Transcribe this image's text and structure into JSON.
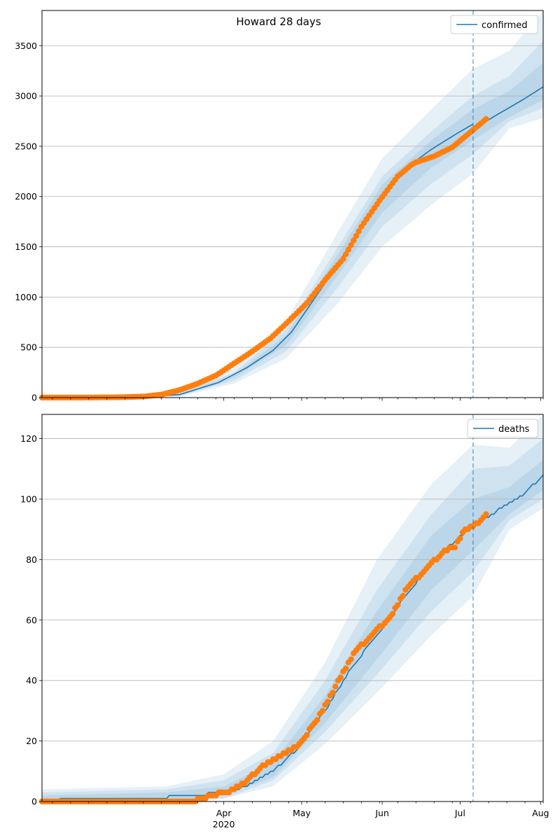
{
  "figure": {
    "title": "Howard 28 days",
    "colors": {
      "model": "#1f77b4",
      "observed": "#ff7f0e",
      "band": "#1f77b4",
      "grid": "#b0b0b0"
    }
  },
  "chart_data": [
    {
      "type": "line",
      "legend": "confirmed",
      "legend_position": "top-right",
      "x_type": "date",
      "xlim": [
        "2020-01-22",
        "2020-08-02"
      ],
      "ylim": [
        0,
        3850
      ],
      "yticks": [
        0,
        500,
        1000,
        1500,
        2000,
        2500,
        3000,
        3500
      ],
      "grid": "horizontal",
      "forecast_start": "2020-07-06",
      "series": [
        {
          "name": "confirmed",
          "role": "model",
          "x": [
            "2020-01-22",
            "2020-03-01",
            "2020-03-15",
            "2020-03-30",
            "2020-04-10",
            "2020-04-20",
            "2020-04-27",
            "2020-05-05",
            "2020-05-15",
            "2020-05-25",
            "2020-06-01",
            "2020-06-10",
            "2020-06-20",
            "2020-06-30",
            "2020-07-06"
          ],
          "y": [
            0,
            5,
            30,
            150,
            300,
            470,
            650,
            950,
            1330,
            1740,
            2010,
            2280,
            2470,
            2630,
            2720
          ]
        },
        {
          "name": "confirmed projection",
          "role": "model",
          "x": [
            "2020-07-06",
            "2020-07-15",
            "2020-07-25",
            "2020-08-02"
          ],
          "y": [
            2670,
            2810,
            2960,
            3090
          ]
        },
        {
          "name": "confirmed observed",
          "role": "observed",
          "x": [
            "2020-01-22",
            "2020-02-05",
            "2020-02-20",
            "2020-03-01",
            "2020-03-08",
            "2020-03-15",
            "2020-03-22",
            "2020-03-29",
            "2020-04-05",
            "2020-04-12",
            "2020-04-19",
            "2020-04-26",
            "2020-05-03",
            "2020-05-10",
            "2020-05-17",
            "2020-05-24",
            "2020-05-31",
            "2020-06-07",
            "2020-06-12",
            "2020-06-14",
            "2020-06-21",
            "2020-06-28",
            "2020-07-05",
            "2020-07-11"
          ],
          "y": [
            0,
            0,
            3,
            10,
            30,
            75,
            140,
            220,
            340,
            460,
            590,
            760,
            940,
            1170,
            1380,
            1700,
            1960,
            2200,
            2310,
            2340,
            2400,
            2490,
            2640,
            2770
          ]
        }
      ],
      "bands": [
        {
          "x": [
            "2020-01-22",
            "2020-03-15",
            "2020-04-05",
            "2020-04-25",
            "2020-05-15",
            "2020-06-01",
            "2020-06-20",
            "2020-07-06",
            "2020-07-20",
            "2020-08-02"
          ],
          "low": [
            0,
            10,
            140,
            390,
            940,
            1500,
            1920,
            2230,
            2680,
            2780
          ],
          "high": [
            0,
            60,
            290,
            760,
            1650,
            2380,
            2870,
            3270,
            3450,
            3850
          ]
        },
        {
          "x": [
            "2020-01-22",
            "2020-03-15",
            "2020-04-05",
            "2020-04-25",
            "2020-05-15",
            "2020-06-01",
            "2020-06-20",
            "2020-07-06",
            "2020-07-20",
            "2020-08-02"
          ],
          "low": [
            0,
            15,
            170,
            460,
            1100,
            1700,
            2130,
            2420,
            2750,
            2880
          ],
          "high": [
            0,
            45,
            250,
            680,
            1500,
            2200,
            2650,
            3000,
            3200,
            3550
          ]
        },
        {
          "x": [
            "2020-01-22",
            "2020-03-15",
            "2020-04-05",
            "2020-04-25",
            "2020-05-15",
            "2020-06-01",
            "2020-06-20",
            "2020-07-06",
            "2020-07-20",
            "2020-08-02"
          ],
          "low": [
            0,
            22,
            200,
            520,
            1220,
            1840,
            2290,
            2560,
            2790,
            2960
          ],
          "high": [
            0,
            38,
            225,
            620,
            1430,
            2120,
            2560,
            2870,
            3050,
            3330
          ]
        }
      ],
      "x_ticks": [
        {
          "date": "2020-04-01",
          "label": "Apr",
          "sublabel": "2020"
        },
        {
          "date": "2020-05-01",
          "label": "May"
        },
        {
          "date": "2020-06-01",
          "label": "Jun"
        },
        {
          "date": "2020-07-01",
          "label": "Jul"
        },
        {
          "date": "2020-08-01",
          "label": "Aug"
        }
      ],
      "show_xticklabels": false
    },
    {
      "type": "line",
      "legend": "deaths",
      "legend_position": "top-right",
      "x_type": "date",
      "xlim": [
        "2020-01-22",
        "2020-08-02"
      ],
      "ylim": [
        0,
        128
      ],
      "yticks": [
        0,
        20,
        40,
        60,
        80,
        100,
        120
      ],
      "grid": "horizontal",
      "forecast_start": "2020-07-06",
      "series": [
        {
          "name": "deaths",
          "role": "model",
          "x": [
            "2020-01-22",
            "2020-02-05",
            "2020-03-01",
            "2020-03-20",
            "2020-04-01",
            "2020-04-10",
            "2020-04-20",
            "2020-04-30",
            "2020-05-10",
            "2020-05-20",
            "2020-05-30",
            "2020-06-10",
            "2020-06-20",
            "2020-06-30",
            "2020-07-06",
            "2020-07-15",
            "2020-07-25",
            "2020-08-02"
          ],
          "y": [
            0,
            1,
            1,
            2,
            3,
            5,
            10,
            18,
            30,
            44,
            55,
            68,
            79,
            87,
            91,
            96,
            101,
            108
          ]
        },
        {
          "name": "deaths observed",
          "role": "observed",
          "x": [
            "2020-01-22",
            "2020-02-15",
            "2020-03-20",
            "2020-03-27",
            "2020-04-02",
            "2020-04-09",
            "2020-04-16",
            "2020-04-23",
            "2020-04-30",
            "2020-05-07",
            "2020-05-14",
            "2020-05-21",
            "2020-05-28",
            "2020-06-04",
            "2020-06-11",
            "2020-06-18",
            "2020-06-25",
            "2020-06-29",
            "2020-07-02",
            "2020-07-06",
            "2020-07-09",
            "2020-07-11"
          ],
          "y": [
            0,
            0,
            0,
            2,
            3,
            6,
            12,
            15,
            19,
            27,
            38,
            49,
            55,
            61,
            71,
            77,
            83,
            84,
            89,
            91,
            93,
            95
          ]
        }
      ],
      "bands": [
        {
          "x": [
            "2020-01-22",
            "2020-03-10",
            "2020-04-01",
            "2020-04-20",
            "2020-05-10",
            "2020-05-30",
            "2020-06-20",
            "2020-07-06",
            "2020-07-20",
            "2020-08-02"
          ],
          "low": [
            0,
            0,
            1,
            5,
            19,
            36,
            55,
            68,
            90,
            97
          ],
          "high": [
            4,
            5,
            9,
            20,
            46,
            80,
            105,
            118,
            117,
            128
          ]
        },
        {
          "x": [
            "2020-01-22",
            "2020-03-10",
            "2020-04-01",
            "2020-04-20",
            "2020-05-10",
            "2020-05-30",
            "2020-06-20",
            "2020-07-06",
            "2020-07-20",
            "2020-08-02"
          ],
          "low": [
            0,
            0,
            1,
            7,
            23,
            42,
            63,
            76,
            93,
            100
          ],
          "high": [
            3,
            4,
            7,
            16,
            40,
            70,
            95,
            110,
            111,
            120
          ]
        },
        {
          "x": [
            "2020-01-22",
            "2020-03-10",
            "2020-04-01",
            "2020-04-20",
            "2020-05-10",
            "2020-05-30",
            "2020-06-20",
            "2020-07-06",
            "2020-07-20",
            "2020-08-02"
          ],
          "low": [
            0,
            0,
            2,
            8,
            26,
            47,
            70,
            83,
            95,
            103
          ],
          "high": [
            2,
            3,
            5,
            13,
            35,
            63,
            88,
            100,
            104,
            113
          ]
        }
      ],
      "x_ticks": [
        {
          "date": "2020-04-01",
          "label": "Apr",
          "sublabel": "2020"
        },
        {
          "date": "2020-05-01",
          "label": "May"
        },
        {
          "date": "2020-06-01",
          "label": "Jun"
        },
        {
          "date": "2020-07-01",
          "label": "Jul"
        },
        {
          "date": "2020-08-01",
          "label": "Aug"
        }
      ],
      "show_xticklabels": true
    }
  ]
}
